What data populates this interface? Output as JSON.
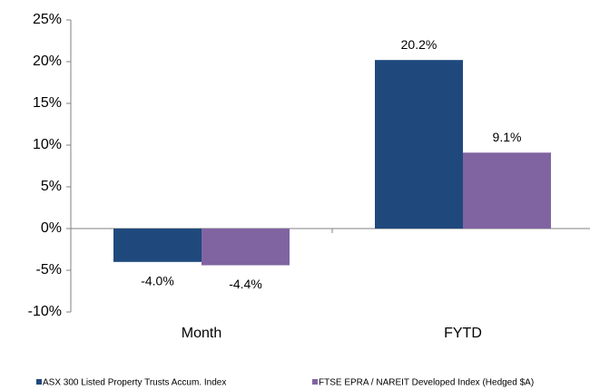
{
  "chart_data": {
    "type": "bar",
    "categories": [
      "Month",
      "FYTD"
    ],
    "series": [
      {
        "name": "ASX 300 Listed Property Trusts Accum. Index",
        "color": "#1f497d",
        "values": [
          -4.0,
          20.2
        ],
        "value_labels": [
          "-4.0%",
          "20.2%"
        ]
      },
      {
        "name": "FTSE EPRA / NAREIT Developed Index (Hedged $A)",
        "color": "#8064a2",
        "values": [
          -4.4,
          9.1
        ],
        "value_labels": [
          "-4.4%",
          "9.1%"
        ]
      }
    ],
    "ylim": [
      -10,
      25
    ],
    "yticks": [
      {
        "value": -10,
        "label": "-10%"
      },
      {
        "value": -5,
        "label": "-5%"
      },
      {
        "value": 0,
        "label": "0%"
      },
      {
        "value": 5,
        "label": "5%"
      },
      {
        "value": 10,
        "label": "10%"
      },
      {
        "value": 15,
        "label": "15%"
      },
      {
        "value": 20,
        "label": "20%"
      },
      {
        "value": 25,
        "label": "25%"
      }
    ],
    "grid": false,
    "legend": "bottom"
  }
}
